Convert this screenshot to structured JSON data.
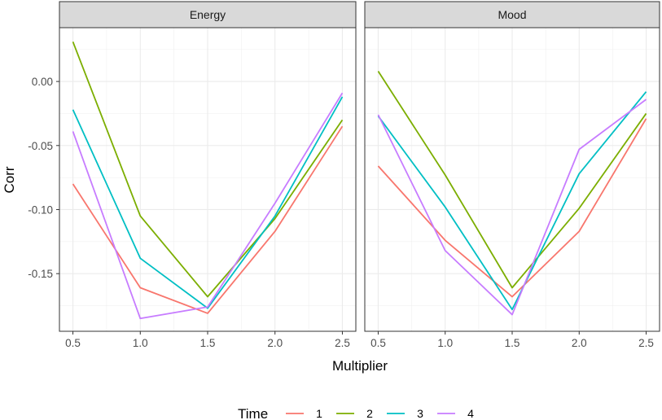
{
  "chart_data": {
    "type": "line",
    "xlabel": "Multiplier",
    "ylabel": "Corr",
    "x": [
      0.5,
      1.0,
      1.5,
      2.0,
      2.5
    ],
    "x_ticks": [
      "0.5",
      "1.0",
      "1.5",
      "2.0",
      "2.5"
    ],
    "y_ticks": [
      "0.00",
      "-0.05",
      "-0.10",
      "-0.15"
    ],
    "y_tick_values": [
      0.0,
      -0.05,
      -0.1,
      -0.15
    ],
    "xlim": [
      0.4,
      2.6
    ],
    "ylim": [
      -0.195,
      0.042
    ],
    "grid": true,
    "legend": {
      "title": "Time",
      "position": "bottom",
      "entries": [
        {
          "label": "1",
          "color": "#F8766D"
        },
        {
          "label": "2",
          "color": "#7CAE00"
        },
        {
          "label": "3",
          "color": "#00BFC4"
        },
        {
          "label": "4",
          "color": "#C77CFF"
        }
      ]
    },
    "panels": [
      {
        "title": "Energy",
        "series": [
          {
            "name": "1",
            "values": [
              -0.08,
              -0.161,
              -0.181,
              -0.117,
              -0.035
            ]
          },
          {
            "name": "2",
            "values": [
              0.031,
              -0.105,
              -0.168,
              -0.107,
              -0.03
            ]
          },
          {
            "name": "3",
            "values": [
              -0.022,
              -0.138,
              -0.177,
              -0.105,
              -0.012
            ]
          },
          {
            "name": "4",
            "values": [
              -0.039,
              -0.185,
              -0.176,
              -0.095,
              -0.009
            ]
          }
        ]
      },
      {
        "title": "Mood",
        "series": [
          {
            "name": "1",
            "values": [
              -0.066,
              -0.124,
              -0.168,
              -0.117,
              -0.029
            ]
          },
          {
            "name": "2",
            "values": [
              0.008,
              -0.073,
              -0.161,
              -0.099,
              -0.025
            ]
          },
          {
            "name": "3",
            "values": [
              -0.027,
              -0.098,
              -0.178,
              -0.072,
              -0.008
            ]
          },
          {
            "name": "4",
            "values": [
              -0.026,
              -0.132,
              -0.182,
              -0.053,
              -0.014
            ]
          }
        ]
      }
    ]
  }
}
